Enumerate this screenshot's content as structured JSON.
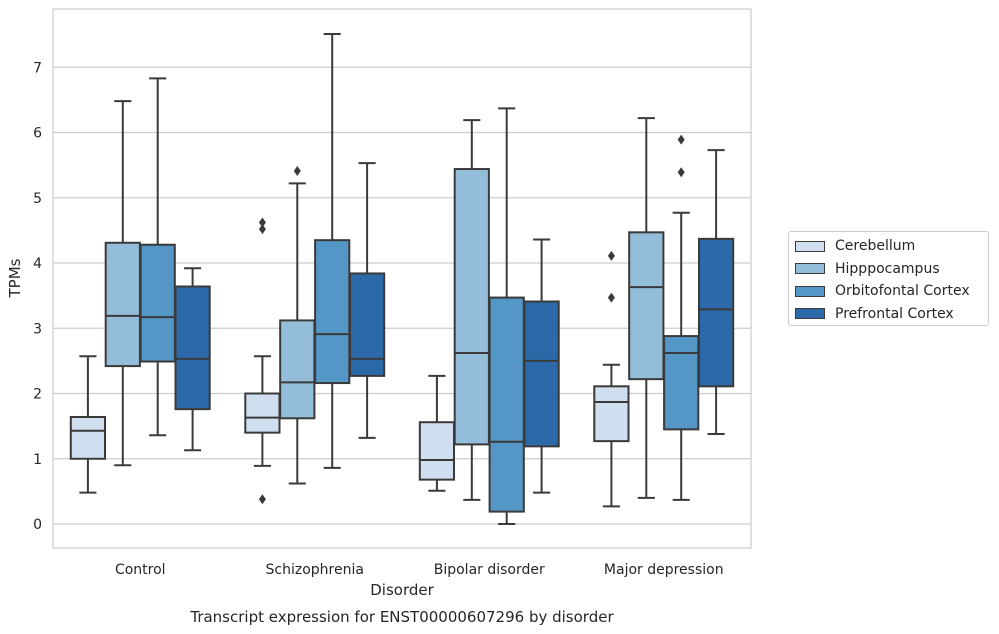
{
  "chart_data": {
    "type": "box",
    "title": "Transcript expression for ENST00000607296 by disorder",
    "xlabel": "Disorder",
    "ylabel": "TPMs",
    "ylim": [
      -0.35,
      7.85
    ],
    "yticks": [
      0,
      1,
      2,
      3,
      4,
      5,
      6,
      7
    ],
    "grid": true,
    "legend_placement": "right",
    "categories": [
      "Control",
      "Schizophrenia",
      "Bipolar disorder",
      "Major depression"
    ],
    "series": [
      {
        "name": "Cerebellum",
        "color": "#d0dfef",
        "boxes": [
          {
            "whislo": 0.48,
            "q1": 1.0,
            "med": 1.43,
            "q3": 1.64,
            "whishi": 2.57,
            "fliers": []
          },
          {
            "whislo": 0.89,
            "q1": 1.4,
            "med": 1.63,
            "q3": 2.0,
            "whishi": 2.57,
            "fliers": [
              4.52,
              4.62,
              0.38
            ]
          },
          {
            "whislo": 0.51,
            "q1": 0.68,
            "med": 0.98,
            "q3": 1.56,
            "whishi": 2.27,
            "fliers": []
          },
          {
            "whislo": 0.27,
            "q1": 1.27,
            "med": 1.87,
            "q3": 2.11,
            "whishi": 2.44,
            "fliers": [
              4.11,
              3.47
            ]
          }
        ]
      },
      {
        "name": "Hipppocampus",
        "color": "#93bdd8",
        "boxes": [
          {
            "whislo": 0.9,
            "q1": 2.42,
            "med": 3.19,
            "q3": 4.31,
            "whishi": 6.48,
            "fliers": []
          },
          {
            "whislo": 0.62,
            "q1": 1.62,
            "med": 2.17,
            "q3": 3.12,
            "whishi": 5.22,
            "fliers": [
              5.41
            ]
          },
          {
            "whislo": 0.37,
            "q1": 1.22,
            "med": 2.62,
            "q3": 5.44,
            "whishi": 6.19,
            "fliers": []
          },
          {
            "whislo": 0.4,
            "q1": 2.22,
            "med": 3.63,
            "q3": 4.47,
            "whishi": 6.22,
            "fliers": []
          }
        ]
      },
      {
        "name": "Orbitofontal Cortex",
        "color": "#5496c6",
        "boxes": [
          {
            "whislo": 1.36,
            "q1": 2.49,
            "med": 3.17,
            "q3": 4.28,
            "whishi": 6.83,
            "fliers": []
          },
          {
            "whislo": 0.86,
            "q1": 2.16,
            "med": 2.91,
            "q3": 4.35,
            "whishi": 7.51,
            "fliers": []
          },
          {
            "whislo": 0.0,
            "q1": 0.19,
            "med": 1.26,
            "q3": 3.47,
            "whishi": 6.37,
            "fliers": []
          },
          {
            "whislo": 0.37,
            "q1": 1.45,
            "med": 2.62,
            "q3": 2.88,
            "whishi": 4.77,
            "fliers": [
              5.89,
              5.39
            ]
          }
        ]
      },
      {
        "name": "Prefrontal Cortex",
        "color": "#2c69a8",
        "boxes": [
          {
            "whislo": 1.13,
            "q1": 1.76,
            "med": 2.53,
            "q3": 3.64,
            "whishi": 3.92,
            "fliers": []
          },
          {
            "whislo": 1.32,
            "q1": 2.27,
            "med": 2.53,
            "q3": 3.84,
            "whishi": 5.53,
            "fliers": []
          },
          {
            "whislo": 0.48,
            "q1": 1.19,
            "med": 2.5,
            "q3": 3.41,
            "whishi": 4.36,
            "fliers": []
          },
          {
            "whislo": 1.38,
            "q1": 2.11,
            "med": 3.29,
            "q3": 4.37,
            "whishi": 5.73,
            "fliers": []
          }
        ]
      }
    ]
  }
}
